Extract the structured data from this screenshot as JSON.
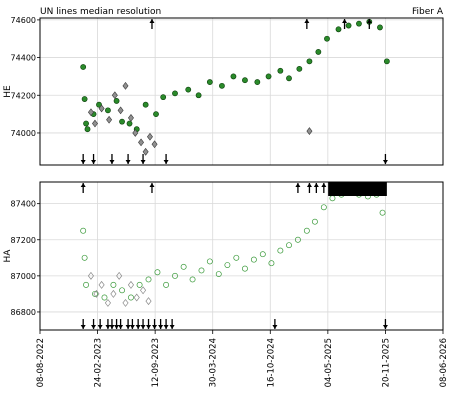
{
  "chart_data": [
    {
      "type": "scatter",
      "panel": "top",
      "title": "UN lines median resolution",
      "title_right": "Fiber A",
      "ylabel": "HE",
      "ylim": [
        73830,
        74610
      ],
      "yticks": [
        74000,
        74200,
        74400,
        74600
      ],
      "ytick_labels": [
        "74000",
        "74200",
        "74400",
        "74600"
      ],
      "grid": true,
      "series": [
        {
          "color": "#2a8a2a",
          "edge": "#0a3d0a",
          "marker": "circle-filled",
          "points": [
            [
              "2023-01-05",
              74350
            ],
            [
              "2023-01-10",
              74180
            ],
            [
              "2023-01-15",
              74050
            ],
            [
              "2023-01-20",
              74020
            ],
            [
              "2023-02-10",
              74100
            ],
            [
              "2023-03-01",
              74150
            ],
            [
              "2023-04-01",
              74120
            ],
            [
              "2023-05-01",
              74170
            ],
            [
              "2023-05-20",
              74060
            ],
            [
              "2023-06-15",
              74050
            ],
            [
              "2023-07-10",
              74020
            ],
            [
              "2023-08-10",
              74150
            ],
            [
              "2023-09-15",
              74100
            ],
            [
              "2023-10-10",
              74190
            ],
            [
              "2023-11-20",
              74210
            ],
            [
              "2024-01-05",
              74230
            ],
            [
              "2024-02-10",
              74200
            ],
            [
              "2024-03-20",
              74270
            ],
            [
              "2024-05-01",
              74250
            ],
            [
              "2024-06-10",
              74300
            ],
            [
              "2024-07-20",
              74280
            ],
            [
              "2024-09-01",
              74270
            ],
            [
              "2024-10-10",
              74300
            ],
            [
              "2024-11-20",
              74330
            ],
            [
              "2024-12-20",
              74290
            ],
            [
              "2025-01-25",
              74340
            ],
            [
              "2025-03-01",
              74380
            ],
            [
              "2025-04-01",
              74430
            ],
            [
              "2025-05-01",
              74500
            ],
            [
              "2025-06-10",
              74550
            ],
            [
              "2025-07-15",
              74570
            ],
            [
              "2025-08-20",
              74580
            ],
            [
              "2025-09-25",
              74590
            ],
            [
              "2025-11-01",
              74560
            ],
            [
              "2025-11-25",
              74380
            ]
          ]
        },
        {
          "color": "#909090",
          "edge": "#3a3a3a",
          "marker": "diamond-filled",
          "points": [
            [
              "2023-02-01",
              74110
            ],
            [
              "2023-02-15",
              74050
            ],
            [
              "2023-03-10",
              74130
            ],
            [
              "2023-04-05",
              74070
            ],
            [
              "2023-04-25",
              74200
            ],
            [
              "2023-05-15",
              74120
            ],
            [
              "2023-06-01",
              74250
            ],
            [
              "2023-06-20",
              74080
            ],
            [
              "2023-07-05",
              74000
            ],
            [
              "2023-07-25",
              73950
            ],
            [
              "2023-08-10",
              73900
            ],
            [
              "2023-08-25",
              73980
            ],
            [
              "2023-09-10",
              73940
            ],
            [
              "2025-03-01",
              74010
            ]
          ]
        }
      ],
      "up_markers": [
        "2023-09-01",
        "2025-02-20",
        "2025-07-01",
        "2025-09-25"
      ],
      "down_markers": [
        "2023-01-05",
        "2023-02-10",
        "2023-04-15",
        "2023-06-10",
        "2023-08-01",
        "2023-10-20",
        "2025-11-20"
      ]
    },
    {
      "type": "scatter",
      "panel": "bottom",
      "ylabel": "HA",
      "ylim": [
        86700,
        87520
      ],
      "yticks": [
        86800,
        87000,
        87200,
        87400
      ],
      "ytick_labels": [
        "86800",
        "87000",
        "87200",
        "87400"
      ],
      "xlim": [
        "2022-08-08",
        "2026-06-08"
      ],
      "xticks": [
        "2022-08-08",
        "2023-02-24",
        "2023-09-12",
        "2024-03-30",
        "2024-10-16",
        "2025-05-04",
        "2025-11-20",
        "2026-06-08"
      ],
      "xtick_labels": [
        "08-08-2022",
        "24-02-2023",
        "12-09-2023",
        "30-03-2024",
        "16-10-2024",
        "04-05-2025",
        "20-11-2025",
        "08-06-2026"
      ],
      "grid": true,
      "series": [
        {
          "color": "#3a9a3a",
          "marker": "circle-open",
          "points": [
            [
              "2023-01-05",
              87250
            ],
            [
              "2023-01-10",
              87100
            ],
            [
              "2023-01-15",
              86950
            ],
            [
              "2023-02-15",
              86900
            ],
            [
              "2023-03-20",
              86880
            ],
            [
              "2023-04-20",
              86950
            ],
            [
              "2023-05-20",
              86920
            ],
            [
              "2023-06-20",
              86880
            ],
            [
              "2023-07-20",
              86950
            ],
            [
              "2023-08-20",
              86980
            ],
            [
              "2023-09-20",
              87020
            ],
            [
              "2023-10-20",
              86950
            ],
            [
              "2023-11-20",
              87000
            ],
            [
              "2023-12-20",
              87050
            ],
            [
              "2024-01-20",
              86980
            ],
            [
              "2024-02-20",
              87030
            ],
            [
              "2024-03-20",
              87080
            ],
            [
              "2024-04-20",
              87010
            ],
            [
              "2024-05-20",
              87060
            ],
            [
              "2024-06-20",
              87100
            ],
            [
              "2024-07-20",
              87040
            ],
            [
              "2024-08-20",
              87090
            ],
            [
              "2024-09-20",
              87120
            ],
            [
              "2024-10-20",
              87070
            ],
            [
              "2024-11-20",
              87140
            ],
            [
              "2024-12-20",
              87170
            ],
            [
              "2025-01-20",
              87200
            ],
            [
              "2025-02-20",
              87250
            ],
            [
              "2025-03-20",
              87300
            ],
            [
              "2025-04-20",
              87380
            ],
            [
              "2025-05-20",
              87430
            ],
            [
              "2025-06-20",
              87450
            ],
            [
              "2025-07-20",
              87460
            ],
            [
              "2025-08-20",
              87450
            ],
            [
              "2025-09-20",
              87440
            ],
            [
              "2025-10-20",
              87450
            ],
            [
              "2025-11-10",
              87350
            ]
          ]
        },
        {
          "color": "#8a8a8a",
          "marker": "diamond-open",
          "points": [
            [
              "2023-02-01",
              87000
            ],
            [
              "2023-02-20",
              86900
            ],
            [
              "2023-03-10",
              86950
            ],
            [
              "2023-04-01",
              86850
            ],
            [
              "2023-04-20",
              86900
            ],
            [
              "2023-05-10",
              87000
            ],
            [
              "2023-06-01",
              86850
            ],
            [
              "2023-06-20",
              86950
            ],
            [
              "2023-07-10",
              86880
            ],
            [
              "2023-08-01",
              86920
            ],
            [
              "2023-08-20",
              86860
            ]
          ]
        }
      ],
      "up_markers": [
        "2023-01-05",
        "2023-09-01",
        "2025-01-20",
        "2025-03-01",
        "2025-03-25",
        "2025-04-20"
      ],
      "up_band": [
        "2025-05-05",
        "2025-11-25"
      ],
      "down_markers": [
        "2023-01-05",
        "2023-02-10",
        "2023-03-05",
        "2023-04-01",
        "2023-04-15",
        "2023-05-01",
        "2023-05-15",
        "2023-06-10",
        "2023-06-25",
        "2023-07-15",
        "2023-08-01",
        "2023-08-20",
        "2023-09-10",
        "2023-10-01",
        "2023-10-20",
        "2023-11-10",
        "2024-11-01",
        "2025-11-20"
      ]
    }
  ]
}
